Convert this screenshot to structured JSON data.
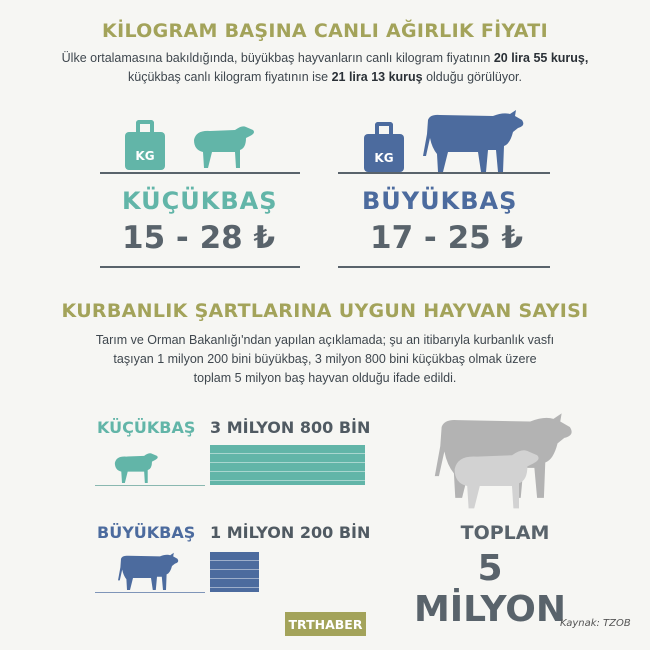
{
  "section1": {
    "title": "KİLOGRAM BAŞINA CANLI AĞIRLIK FİYATI",
    "text_a": "Ülke ortalamasına bakıldığında, büyükbaş hayvanların canlı kilogram fiyatının ",
    "bold_a": "20 lira 55 kuruş,",
    "text_b": "küçükbaş canlı kilogram fiyatının ise ",
    "bold_b": "21 lira 13 kuruş",
    "text_c": " olduğu görülüyor.",
    "kucukbas": {
      "kg": "KG",
      "label": "KÜÇÜKBAŞ",
      "price": "15 - 28 ₺",
      "icon": "sheep-icon"
    },
    "buyukbas": {
      "kg": "KG",
      "label": "BÜYÜKBAŞ",
      "price": "17 - 25 ₺",
      "icon": "bull-icon"
    }
  },
  "section2": {
    "title": "KURBANLIK ŞARTLARINA UYGUN HAYVAN SAYISI",
    "text": "Tarım ve Orman Bakanlığı'ndan yapılan açıklamada; şu an itibarıyla kurbanlık vasfı taşıyan 1 milyon 200 bini büyükbaş, 3 milyon 800 bini küçükbaş olmak üzere toplam 5 milyon baş hayvan olduğu ifade edildi.",
    "rows": [
      {
        "label": "KÜÇÜKBAŞ",
        "value_text": "3 MİLYON 800 BİN",
        "value": 3800000,
        "color": "#62b5a8"
      },
      {
        "label": "BÜYÜKBAŞ",
        "value_text": "1 MİLYON 200 BİN",
        "value": 1200000,
        "color": "#4c6b9e"
      }
    ],
    "total_label": "TOPLAM",
    "total_value": "5 MİLYON"
  },
  "colors": {
    "title": "#a3a35a",
    "teal": "#62b5a8",
    "blue": "#4c6b9e",
    "gray": "#59636b",
    "bg": "#f6f6f3"
  },
  "footer": {
    "brand": "TRTHABER",
    "source": "Kaynak: TZOB"
  }
}
